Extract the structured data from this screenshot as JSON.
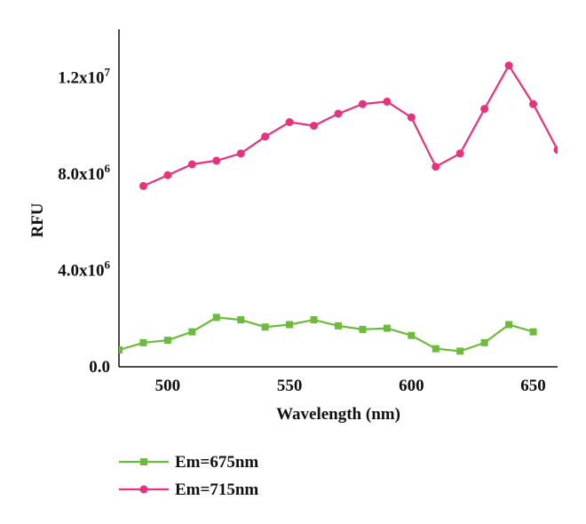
{
  "chart_data": {
    "type": "line",
    "xlabel": "Wavelength (nm)",
    "ylabel": "RFU",
    "xlim": [
      480,
      660
    ],
    "ylim": [
      0,
      14000000
    ],
    "x_ticks": [
      500,
      550,
      600,
      650
    ],
    "y_ticks": [
      {
        "value": 0,
        "mantissa": "0.0",
        "exponent": ""
      },
      {
        "value": 4000000,
        "mantissa": "4.0x10",
        "exponent": "6"
      },
      {
        "value": 8000000,
        "mantissa": "8.0x10",
        "exponent": "6"
      },
      {
        "value": 12000000,
        "mantissa": "1.2x10",
        "exponent": "7"
      }
    ],
    "grid": false,
    "legend_position": "bottom-left",
    "series": [
      {
        "name": "Em=675nm",
        "color": "#6cbb3c",
        "marker": "square",
        "x": [
          480,
          490,
          500,
          510,
          520,
          530,
          540,
          550,
          560,
          570,
          580,
          590,
          600,
          610,
          620,
          630,
          640,
          650
        ],
        "y": [
          700000,
          1000000,
          1100000,
          1450000,
          2050000,
          1950000,
          1650000,
          1750000,
          1950000,
          1700000,
          1550000,
          1600000,
          1300000,
          750000,
          650000,
          1000000,
          1750000,
          1450000
        ]
      },
      {
        "name": "Em=715nm",
        "color": "#e8327e",
        "marker": "circle",
        "x": [
          490,
          500,
          510,
          520,
          530,
          540,
          550,
          560,
          570,
          580,
          590,
          600,
          610,
          620,
          630,
          640,
          650,
          660
        ],
        "y": [
          7500000,
          7950000,
          8400000,
          8550000,
          8850000,
          9550000,
          10150000,
          10000000,
          10500000,
          10900000,
          11000000,
          10350000,
          8300000,
          8850000,
          10700000,
          12500000,
          10900000,
          9000000
        ]
      }
    ]
  }
}
